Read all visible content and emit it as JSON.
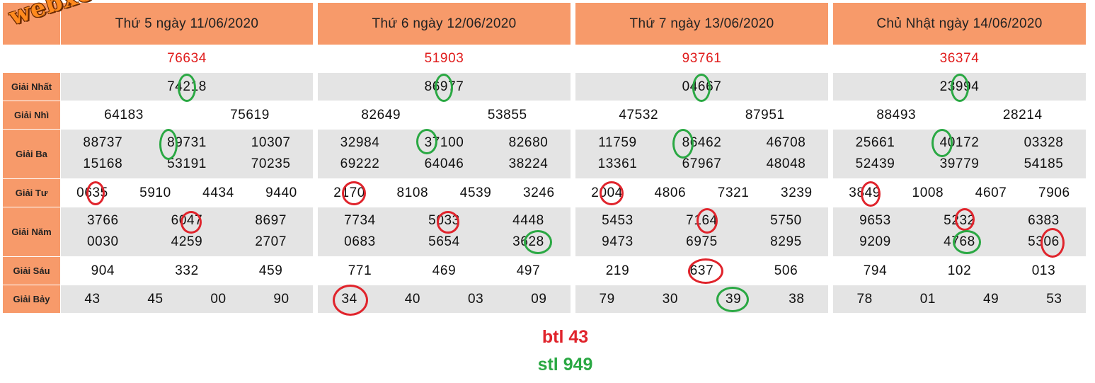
{
  "watermark": "webxoso.net",
  "labels": [
    "Giải Nhất",
    "Giải Nhì",
    "Giải Ba",
    "Giải Tư",
    "Giải Năm",
    "Giải Sáu",
    "Giải Bảy"
  ],
  "days": [
    {
      "header": "Thứ 5 ngày 11/06/2020",
      "db": "76634",
      "nhat": "74218",
      "nhi": [
        "64183",
        "75619"
      ],
      "ba": [
        "88737",
        "89731",
        "10307",
        "15168",
        "53191",
        "70235"
      ],
      "tu": [
        "0635",
        "5910",
        "4434",
        "9440"
      ],
      "nam": [
        "3766",
        "6047",
        "8697",
        "0030",
        "4259",
        "2707"
      ],
      "sau": [
        "904",
        "332",
        "459"
      ],
      "bay": [
        "43",
        "45",
        "00",
        "90"
      ]
    },
    {
      "header": "Thứ 6 ngày 12/06/2020",
      "db": "51903",
      "nhat": "86977",
      "nhi": [
        "82649",
        "53855"
      ],
      "ba": [
        "32984",
        "37100",
        "82680",
        "69222",
        "64046",
        "38224"
      ],
      "tu": [
        "2170",
        "8108",
        "4539",
        "3246"
      ],
      "nam": [
        "7734",
        "5033",
        "4448",
        "0683",
        "5654",
        "3628"
      ],
      "sau": [
        "771",
        "469",
        "497"
      ],
      "bay": [
        "34",
        "40",
        "03",
        "09"
      ]
    },
    {
      "header": "Thứ 7 ngày 13/06/2020",
      "db": "93761",
      "nhat": "04667",
      "nhi": [
        "47532",
        "87951"
      ],
      "ba": [
        "11759",
        "86462",
        "46708",
        "13361",
        "67967",
        "48048"
      ],
      "tu": [
        "2004",
        "4806",
        "7321",
        "3239"
      ],
      "nam": [
        "5453",
        "7164",
        "5750",
        "9473",
        "6975",
        "8295"
      ],
      "sau": [
        "219",
        "637",
        "506"
      ],
      "bay": [
        "79",
        "30",
        "39",
        "38"
      ]
    },
    {
      "header": "Chủ Nhật ngày 14/06/2020",
      "db": "36374",
      "nhat": "23994",
      "nhi": [
        "88493",
        "28214"
      ],
      "ba": [
        "25661",
        "40172",
        "03328",
        "52439",
        "39779",
        "54185"
      ],
      "tu": [
        "3849",
        "1008",
        "4607",
        "7906"
      ],
      "nam": [
        "9653",
        "5232",
        "6383",
        "9209",
        "4768",
        "5306"
      ],
      "sau": [
        "794",
        "102",
        "013"
      ],
      "bay": [
        "78",
        "01",
        "49",
        "53"
      ]
    }
  ],
  "footer": {
    "btl": "btl 43",
    "stl": "stl 949"
  },
  "colors": {
    "header": "#f79a6a",
    "red_ring": "#e0242c",
    "green_ring": "#2aa843",
    "db_text": "#e01b1b"
  }
}
